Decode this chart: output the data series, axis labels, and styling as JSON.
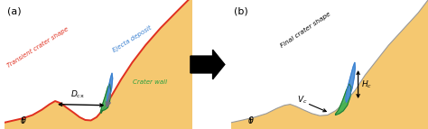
{
  "fig_width": 4.74,
  "fig_height": 1.43,
  "dpi": 100,
  "bg_color": "#ffffff",
  "sand_color": "#f5c870",
  "sand_color2": "#f0c060",
  "red_color": "#e03020",
  "blue_color": "#3a80d0",
  "blue_fill": "#4a8fd8",
  "green_color": "#28a040",
  "green_fill": "#38b050",
  "dark_green": "#207030",
  "gray_color": "#707080",
  "black": "#000000",
  "panel_a_label": "(a)",
  "panel_b_label": "(b)",
  "label_transient": "Transient crater shape",
  "label_ejecta": "Ejecta deposit",
  "label_crater_wall": "Crater wall",
  "label_final": "Final crater shape"
}
